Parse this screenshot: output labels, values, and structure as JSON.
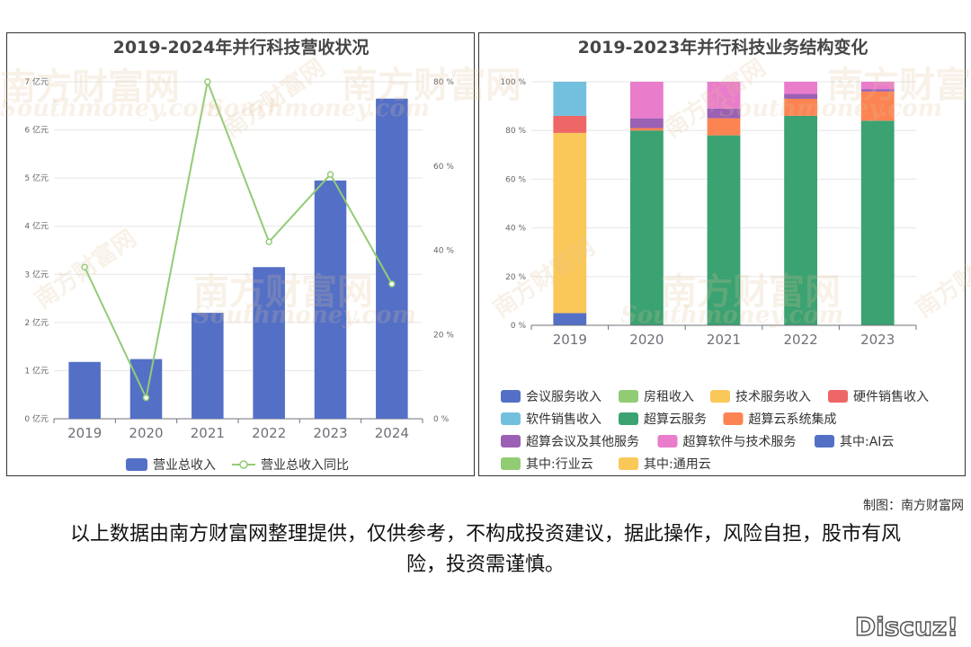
{
  "footer": {
    "credit": "制图：南方财富网",
    "disclaimer": "以上数据由南方财富网整理提供，仅供参考，不构成投资建议，据此操作，风险自担，股市有风险，投资需谨慎。",
    "forum_logo": "Discuz!"
  },
  "watermark": {
    "brand": "南方财富网",
    "domain": "Southmoney.com",
    "short": "南方财富网"
  },
  "colors": {
    "bar_blue": "#5470c6",
    "line_green": "#91cc75"
  },
  "chart_data": [
    {
      "type": "bar",
      "title": "2019-2024年并行科技营收状况",
      "categories": [
        "2019",
        "2020",
        "2021",
        "2022",
        "2023",
        "2024"
      ],
      "series": [
        {
          "name": "营业总收入",
          "type": "bar",
          "axis": "left",
          "unit": "亿元",
          "values": [
            1.18,
            1.24,
            2.2,
            3.15,
            4.95,
            6.65
          ]
        },
        {
          "name": "营业总收入同比",
          "type": "line",
          "axis": "right",
          "unit": "%",
          "values": [
            36,
            5,
            80,
            42,
            58,
            32
          ]
        }
      ],
      "y_left": {
        "min": 0,
        "max": 7,
        "ticks": [
          "0 亿元",
          "1 亿元",
          "2 亿元",
          "3 亿元",
          "4 亿元",
          "5 亿元",
          "6 亿元",
          "7 亿元"
        ]
      },
      "y_right": {
        "min": 0,
        "max": 80,
        "ticks": [
          "0 %",
          "20 %",
          "40 %",
          "60 %",
          "80 %"
        ]
      },
      "legend": "bottom",
      "grid": true
    },
    {
      "type": "stacked_bar",
      "title": "2019-2023年并行科技业务结构变化",
      "categories": [
        "2019",
        "2020",
        "2021",
        "2022",
        "2023"
      ],
      "series": [
        {
          "name": "会议服务收入",
          "color": "#5470c6",
          "values": [
            5,
            0,
            0,
            0,
            0
          ]
        },
        {
          "name": "房租收入",
          "color": "#91cc75",
          "values": [
            0,
            0,
            0,
            0,
            0
          ]
        },
        {
          "name": "技术服务收入",
          "color": "#fac858",
          "values": [
            74,
            0,
            0,
            0,
            0
          ]
        },
        {
          "name": "硬件销售收入",
          "color": "#ee6666",
          "values": [
            7,
            0,
            0,
            0,
            0
          ]
        },
        {
          "name": "软件销售收入",
          "color": "#73c0de",
          "values": [
            14,
            0,
            0,
            0,
            0
          ]
        },
        {
          "name": "超算云服务",
          "color": "#3ba272",
          "values": [
            0,
            80,
            78,
            86,
            84
          ]
        },
        {
          "name": "超算云系统集成",
          "color": "#fc8452",
          "values": [
            0,
            1,
            7,
            7,
            12
          ]
        },
        {
          "name": "超算会议及其他服务",
          "color": "#9a60b4",
          "values": [
            0,
            4,
            4,
            2,
            1
          ]
        },
        {
          "name": "超算软件与技术服务",
          "color": "#ea7ccc",
          "values": [
            0,
            15,
            11,
            5,
            3
          ]
        },
        {
          "name": "其中:AI云",
          "color": "#5470c6",
          "values": [
            0,
            0,
            0,
            0,
            0
          ]
        },
        {
          "name": "其中:行业云",
          "color": "#91cc75",
          "values": [
            0,
            0,
            0,
            0,
            0
          ]
        },
        {
          "name": "其中:通用云",
          "color": "#fac858",
          "values": [
            0,
            0,
            0,
            0,
            0
          ]
        }
      ],
      "y": {
        "min": 0,
        "max": 100,
        "ticks": [
          "0 %",
          "20 %",
          "40 %",
          "60 %",
          "80 %",
          "100 %"
        ]
      },
      "legend": "bottom",
      "grid": true
    }
  ]
}
